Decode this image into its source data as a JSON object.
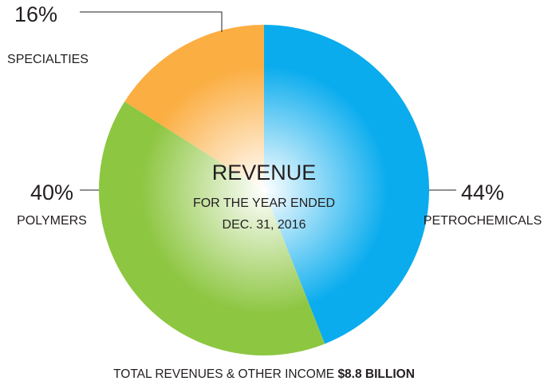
{
  "chart_data": {
    "type": "pie",
    "title": "REVENUE",
    "subtitle": [
      "FOR THE YEAR ENDED",
      "DEC. 31, 2016"
    ],
    "footer": {
      "text": "TOTAL REVENUES & OTHER INCOME",
      "emphasis": "$8.8 BILLION"
    },
    "categories": [
      "PETROCHEMICALS",
      "POLYMERS",
      "SPECIALTIES"
    ],
    "values": [
      44,
      40,
      16
    ],
    "value_labels": [
      "44%",
      "40%",
      "16%"
    ],
    "colors": [
      "#0aacee",
      "#8dc641",
      "#fbae42"
    ]
  }
}
